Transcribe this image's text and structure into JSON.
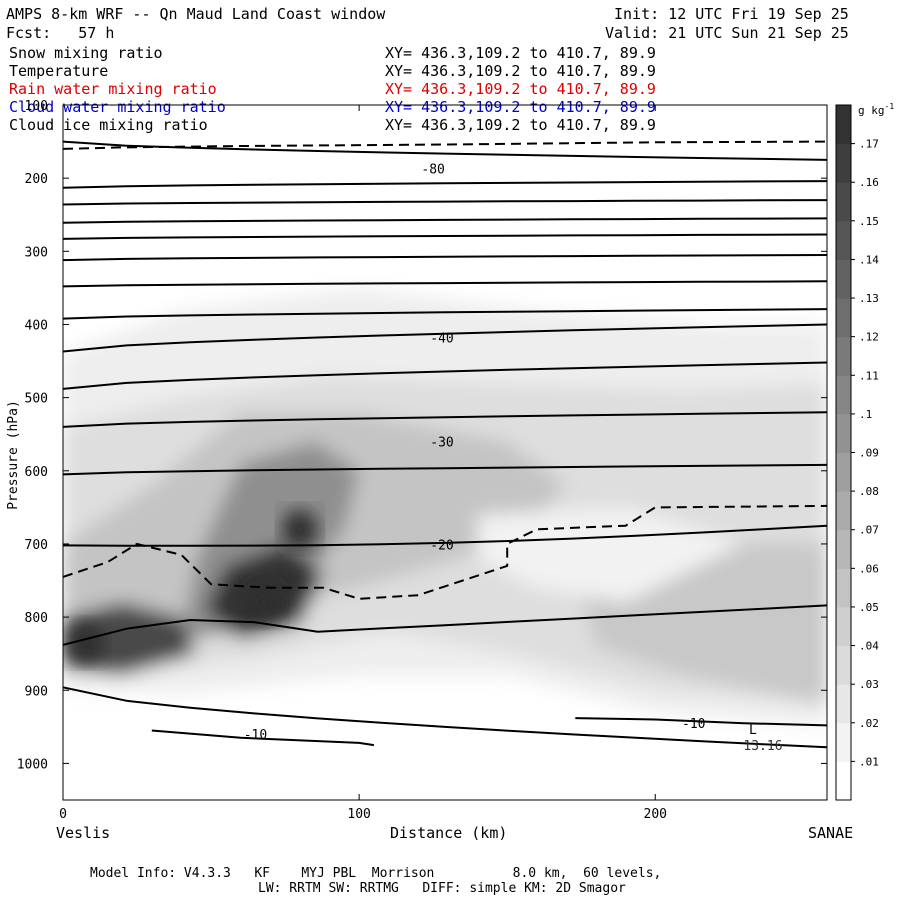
{
  "header": {
    "title": "AMPS 8-km WRF -- Qn Maud Land Coast window",
    "init": "Init: 12 UTC Fri 19 Sep 25",
    "fcst": "Fcst:   57 h",
    "valid": "Valid: 21 UTC Sun 21 Sep 25"
  },
  "fields": [
    {
      "name": "Snow mixing ratio",
      "xy": "XY= 436.3,109.2 to 410.7, 89.9",
      "color": "#000000"
    },
    {
      "name": "Temperature",
      "xy": "XY= 436.3,109.2 to 410.7, 89.9",
      "color": "#000000"
    },
    {
      "name": "Rain water mixing ratio",
      "xy": "XY= 436.3,109.2 to 410.7, 89.9",
      "color": "#dd0000"
    },
    {
      "name": "Cloud water mixing ratio",
      "xy": "XY= 436.3,109.2 to 410.7, 89.9",
      "color": "#0000cc"
    },
    {
      "name": "Cloud ice mixing ratio",
      "xy": "XY= 436.3,109.2 to 410.7, 89.9",
      "color": "#000000"
    }
  ],
  "chart_data": {
    "type": "cross-section contour",
    "xlabel": "Distance (km)",
    "ylabel": "Pressure (hPa)",
    "xlim": [
      0,
      258
    ],
    "ylim": [
      100,
      1050
    ],
    "x_ticks": [
      0,
      100,
      200
    ],
    "y_ticks": [
      100,
      200,
      300,
      400,
      500,
      600,
      700,
      800,
      900,
      1000
    ],
    "left_endpoint": "Veslis",
    "right_endpoint": "SANAE",
    "colorbar": {
      "unit": "g kg",
      "unit_exp": "-1",
      "levels": [
        ".01",
        ".02",
        ".03",
        ".04",
        ".05",
        ".06",
        ".07",
        ".08",
        ".09",
        ".1",
        ".11",
        ".12",
        ".13",
        ".14",
        ".15",
        ".16",
        ".17"
      ]
    },
    "shading_maxima": [
      {
        "x": 8,
        "p": 835,
        "value": 0.16
      },
      {
        "x": 68,
        "p": 780,
        "value": 0.16
      },
      {
        "x": 80,
        "p": 680,
        "value": 0.13
      }
    ],
    "isotherm_labels": [
      {
        "label": "-80",
        "x": 125,
        "p": 187
      },
      {
        "label": "-40",
        "x": 128,
        "p": 418
      },
      {
        "label": "-30",
        "x": 128,
        "p": 560
      },
      {
        "label": "-20",
        "x": 128,
        "p": 701
      },
      {
        "label": "-10",
        "x": 65,
        "p": 960
      },
      {
        "label": "-10",
        "x": 213,
        "p": 945
      }
    ],
    "isotherms_pressure_levels": [
      {
        "p_left": 150,
        "p_right": 175
      },
      {
        "p_left": 213,
        "p_right": 204
      },
      {
        "p_left": 236,
        "p_right": 230
      },
      {
        "p_left": 261,
        "p_right": 255
      },
      {
        "p_left": 283,
        "p_right": 277
      },
      {
        "p_left": 312,
        "p_right": 305
      },
      {
        "p_left": 348,
        "p_right": 341
      },
      {
        "p_left": 392,
        "p_right": 379
      },
      {
        "p_left": 437,
        "p_right": 400
      },
      {
        "p_left": 488,
        "p_right": 452
      },
      {
        "p_left": 540,
        "p_right": 520
      },
      {
        "p_left": 605,
        "p_right": 592
      },
      {
        "p_left": 702,
        "p_right": 675
      },
      {
        "p_left": 838,
        "p_right": 784
      },
      {
        "p_left": 896,
        "p_right": 978
      }
    ],
    "low_marker": {
      "label": "L",
      "value": "13.16",
      "x": 233,
      "p": 960
    }
  },
  "footer": {
    "line1": "Model Info: V4.3.3   KF    MYJ PBL  Morrison          8.0 km,  60 levels,",
    "line2": "LW: RRTM SW: RRTMG   DIFF: simple KM: 2D Smagor"
  }
}
